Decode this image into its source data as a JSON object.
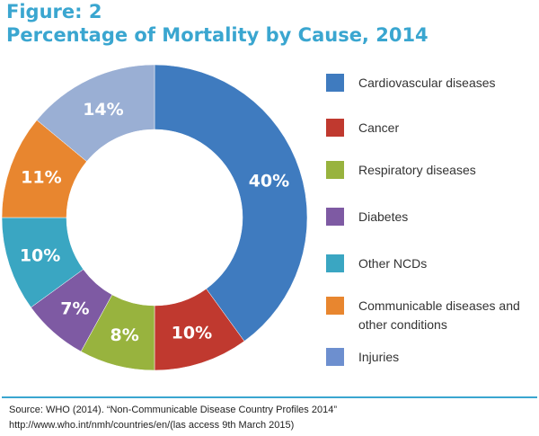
{
  "figure_label": "Figure: 2",
  "title": "Percentage of Mortality by Cause, 2014",
  "chart_data": {
    "type": "pie",
    "donut": true,
    "title": "Percentage of Mortality by Cause, 2014",
    "categories": [
      "Cardiovascular diseases",
      "Cancer",
      "Respiratory diseases",
      "Diabetes",
      "Other NCDs",
      "Communicable diseases and other conditions",
      "Injuries"
    ],
    "values": [
      40,
      10,
      8,
      7,
      10,
      11,
      14
    ],
    "value_labels": [
      "40%",
      "10%",
      "8%",
      "7%",
      "10%",
      "11%",
      "14%"
    ],
    "colors": [
      "#3f7bbf",
      "#c0392f",
      "#98b33e",
      "#7e5aa3",
      "#3aa6c2",
      "#e8862f",
      "#9aafd4"
    ],
    "legend_position": "right"
  },
  "legend": [
    {
      "label": "Cardiovascular diseases",
      "color": "#3f7bbf"
    },
    {
      "label": "Cancer",
      "color": "#c0392f"
    },
    {
      "label": "Respiratory diseases",
      "color": "#98b33e"
    },
    {
      "label": "Diabetes",
      "color": "#7e5aa3"
    },
    {
      "label": "Other NCDs",
      "color": "#3aa6c2"
    },
    {
      "label": "Communicable diseases and other conditions",
      "color": "#e8862f"
    },
    {
      "label": "Injuries",
      "color": "#6d8fcf"
    }
  ],
  "source": {
    "line1": "Source: WHO (2014). “Non-Communicable Disease Country Profiles 2014”",
    "line2": "http://www.who.int/nmh/countries/en/(las access 9th March 2015)"
  }
}
